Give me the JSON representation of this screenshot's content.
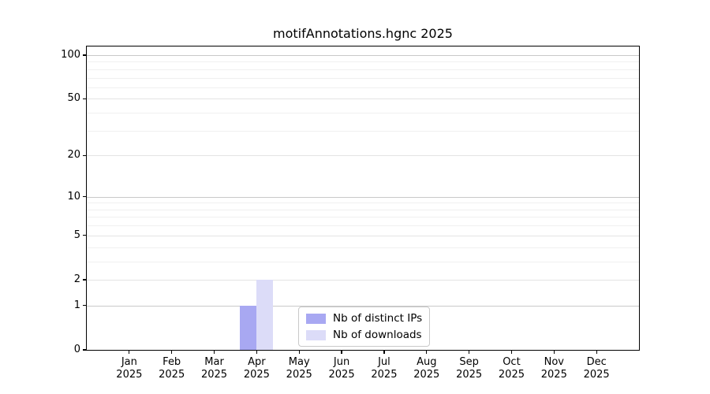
{
  "chart_data": {
    "type": "bar",
    "title": "motifAnnotations.hgnc 2025",
    "x_tick_months": [
      "Jan",
      "Feb",
      "Mar",
      "Apr",
      "May",
      "Jun",
      "Jul",
      "Aug",
      "Sep",
      "Oct",
      "Nov",
      "Dec"
    ],
    "x_tick_year": "2025",
    "series": [
      {
        "name": "Nb of distinct IPs",
        "color": "#a8a8f2",
        "values": [
          0,
          0,
          0,
          1,
          0,
          0,
          0,
          0,
          0,
          0,
          0,
          0
        ]
      },
      {
        "name": "Nb of downloads",
        "color": "#dcdcf8",
        "values": [
          0,
          0,
          0,
          2,
          0,
          0,
          0,
          0,
          0,
          0,
          0,
          0
        ]
      }
    ],
    "yscale": "log1p",
    "ylim": [
      0,
      115
    ],
    "y_ticks": [
      0,
      1,
      2,
      5,
      10,
      20,
      50,
      100
    ],
    "y_minor_ticks": [
      3,
      4,
      6,
      7,
      8,
      9,
      30,
      40,
      60,
      70,
      80,
      90
    ],
    "grid": true,
    "legend_position": "lower-center-inside",
    "colors": {
      "grid_major": "#c9c9c9",
      "grid_mid": "#e4e4e4",
      "grid_minor": "#f0f0f0",
      "spine": "#000000"
    }
  }
}
